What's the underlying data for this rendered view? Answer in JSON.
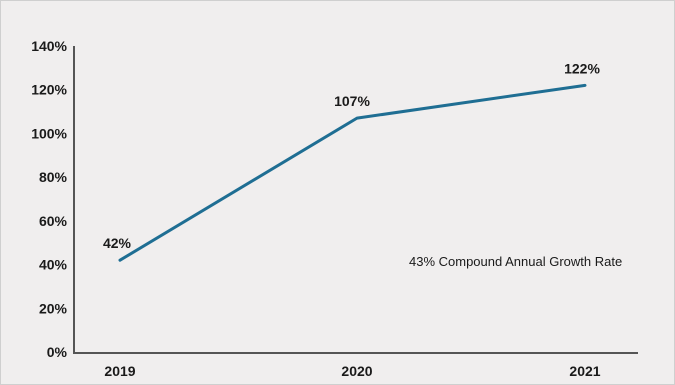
{
  "chart_data": {
    "type": "line",
    "categories": [
      "2019",
      "2020",
      "2021"
    ],
    "series": [
      {
        "values": [
          42,
          107,
          122
        ]
      }
    ],
    "data_labels": [
      "42%",
      "107%",
      "122%"
    ],
    "y_ticks": [
      "0%",
      "20%",
      "40%",
      "60%",
      "80%",
      "100%",
      "120%",
      "140%"
    ],
    "ylim": [
      0,
      140
    ],
    "annotation": "43% Compound Annual Growth Rate",
    "line_color": "#1f6e93",
    "axis_color": "#555555",
    "grid": false
  }
}
